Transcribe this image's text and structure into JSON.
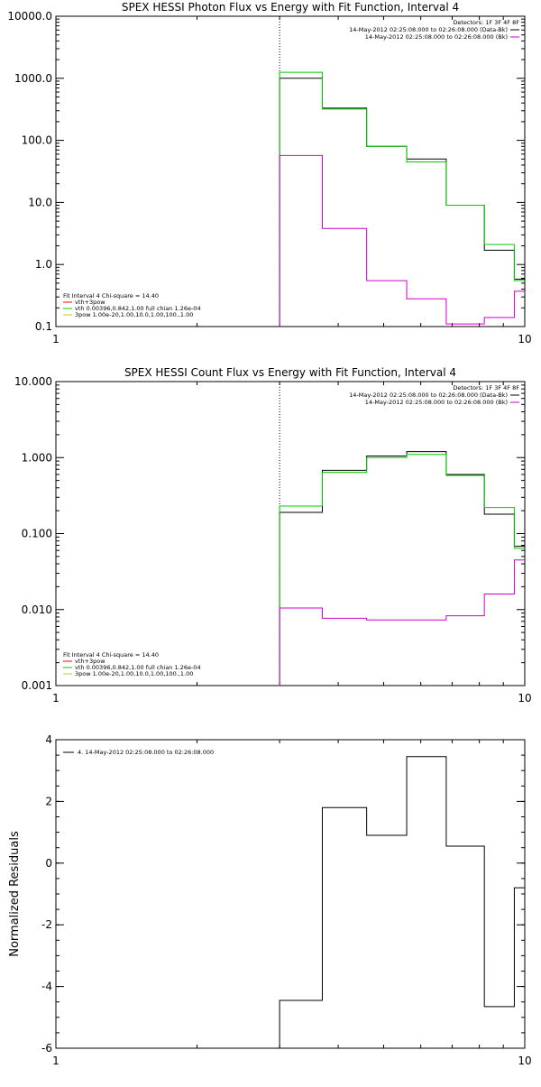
{
  "chart_data": [
    {
      "type": "line",
      "title": "SPEX HESSI Photon Flux vs Energy with Fit Function, Interval 4",
      "xscale": "log",
      "yscale": "log",
      "xlim": [
        1,
        10
      ],
      "ylim": [
        0.1,
        10000
      ],
      "x_ticks": [
        1,
        10
      ],
      "x_tick_labels": [
        "1",
        "10"
      ],
      "y_ticks": [
        0.1,
        1,
        10,
        100,
        1000,
        10000
      ],
      "y_tick_labels": [
        "0.1",
        "1.0",
        "10.0",
        "100.0",
        "1000.0",
        "10000.0"
      ],
      "marker_line_x": 3,
      "legend_top": {
        "header": "Detectors: 1F 3F 4F 8F",
        "entries": [
          {
            "label": "14-May-2012 02:25:08.000 to 02:26:08.000 (Data-Bk)",
            "color": "#000000"
          },
          {
            "label": "14-May-2012 02:25:08.000 to 02:26:08.000 (Bk)",
            "color": "#cc00cc"
          }
        ]
      },
      "legend_bottom": {
        "header": "Fit Interval  4    Chi-square = 14.40",
        "entries": [
          {
            "label": "vth+3pow",
            "color": "#ff0000"
          },
          {
            "label": "vth 0.00396,0.842,1.00   full chian 1.26e-04",
            "color": "#00cc00"
          },
          {
            "label": "3pow 1.00e-20,1.00,10.0,1.00,100.,1.00",
            "color": "#cccc00"
          }
        ]
      },
      "x_edges": [
        3.0,
        3.7,
        4.6,
        5.6,
        6.8,
        8.2,
        9.5,
        10.0
      ],
      "series": [
        {
          "color": "#000000",
          "values": [
            1000,
            330,
            80,
            50,
            9,
            1.7,
            0.58
          ]
        },
        {
          "color": "#00cc00",
          "values": [
            1250,
            320,
            80,
            45,
            9,
            2.1,
            0.55
          ]
        },
        {
          "color": "#cc00cc",
          "values": [
            57,
            3.8,
            0.55,
            0.28,
            0.11,
            0.14,
            0.37
          ]
        }
      ]
    },
    {
      "type": "line",
      "title": "SPEX HESSI Count Flux vs Energy with Fit Function, Interval 4",
      "xscale": "log",
      "yscale": "log",
      "xlim": [
        1,
        10
      ],
      "ylim": [
        0.001,
        10
      ],
      "x_ticks": [
        1,
        10
      ],
      "x_tick_labels": [
        "1",
        "10"
      ],
      "y_ticks": [
        0.001,
        0.01,
        0.1,
        1,
        10
      ],
      "y_tick_labels": [
        "0.001",
        "0.010",
        "0.100",
        "1.000",
        "10.000"
      ],
      "marker_line_x": 3,
      "legend_top": {
        "header": "Detectors: 1F 3F 4F 8F",
        "entries": [
          {
            "label": "14-May-2012 02:25:08.000 to 02:26:08.000 (Data-Bk)",
            "color": "#000000"
          },
          {
            "label": "14-May-2012 02:25:08.000 to 02:26:08.000 (Bk)",
            "color": "#cc00cc"
          }
        ]
      },
      "legend_bottom": {
        "header": "Fit Interval  4    Chi-square = 14.40",
        "entries": [
          {
            "label": "vth+3pow",
            "color": "#ff0000"
          },
          {
            "label": "vth 0.00396,0.842,1.00   full chian 1.26e-04",
            "color": "#00cc00"
          },
          {
            "label": "3pow 1.00e-20,1.00,10.0,1.00,100.,1.00",
            "color": "#cccc00"
          }
        ]
      },
      "x_edges": [
        3.0,
        3.7,
        4.6,
        5.6,
        6.8,
        8.2,
        9.5,
        10.0
      ],
      "series": [
        {
          "color": "#000000",
          "values": [
            0.19,
            0.68,
            1.05,
            1.2,
            0.6,
            0.18,
            0.068
          ]
        },
        {
          "color": "#00cc00",
          "values": [
            0.23,
            0.64,
            1.0,
            1.1,
            0.58,
            0.22,
            0.064
          ]
        },
        {
          "color": "#cc00cc",
          "values": [
            0.0105,
            0.0077,
            0.0073,
            0.0073,
            0.0083,
            0.016,
            0.045
          ]
        }
      ]
    },
    {
      "type": "line",
      "title": "",
      "xscale": "log",
      "yscale": "linear",
      "xlim": [
        1,
        10
      ],
      "ylim": [
        -6,
        4
      ],
      "ylabel": "Normalized Residuals",
      "x_ticks": [
        1,
        10
      ],
      "x_tick_labels": [
        "1",
        "10"
      ],
      "y_ticks": [
        -6,
        -4,
        -2,
        0,
        2,
        4
      ],
      "y_tick_labels": [
        "-6",
        "-4",
        "-2",
        "0",
        "2",
        "4"
      ],
      "legend_top": {
        "header": "",
        "entries": [
          {
            "label": "4. 14-May-2012 02:25:08.000 to 02:26:08.000",
            "color": "#000000"
          }
        ]
      },
      "x_edges": [
        3.0,
        3.7,
        4.6,
        5.6,
        6.8,
        8.2,
        9.5,
        10.0
      ],
      "series": [
        {
          "color": "#000000",
          "values": [
            -4.45,
            1.8,
            0.9,
            3.45,
            0.55,
            -4.65,
            -0.8
          ]
        }
      ]
    }
  ]
}
